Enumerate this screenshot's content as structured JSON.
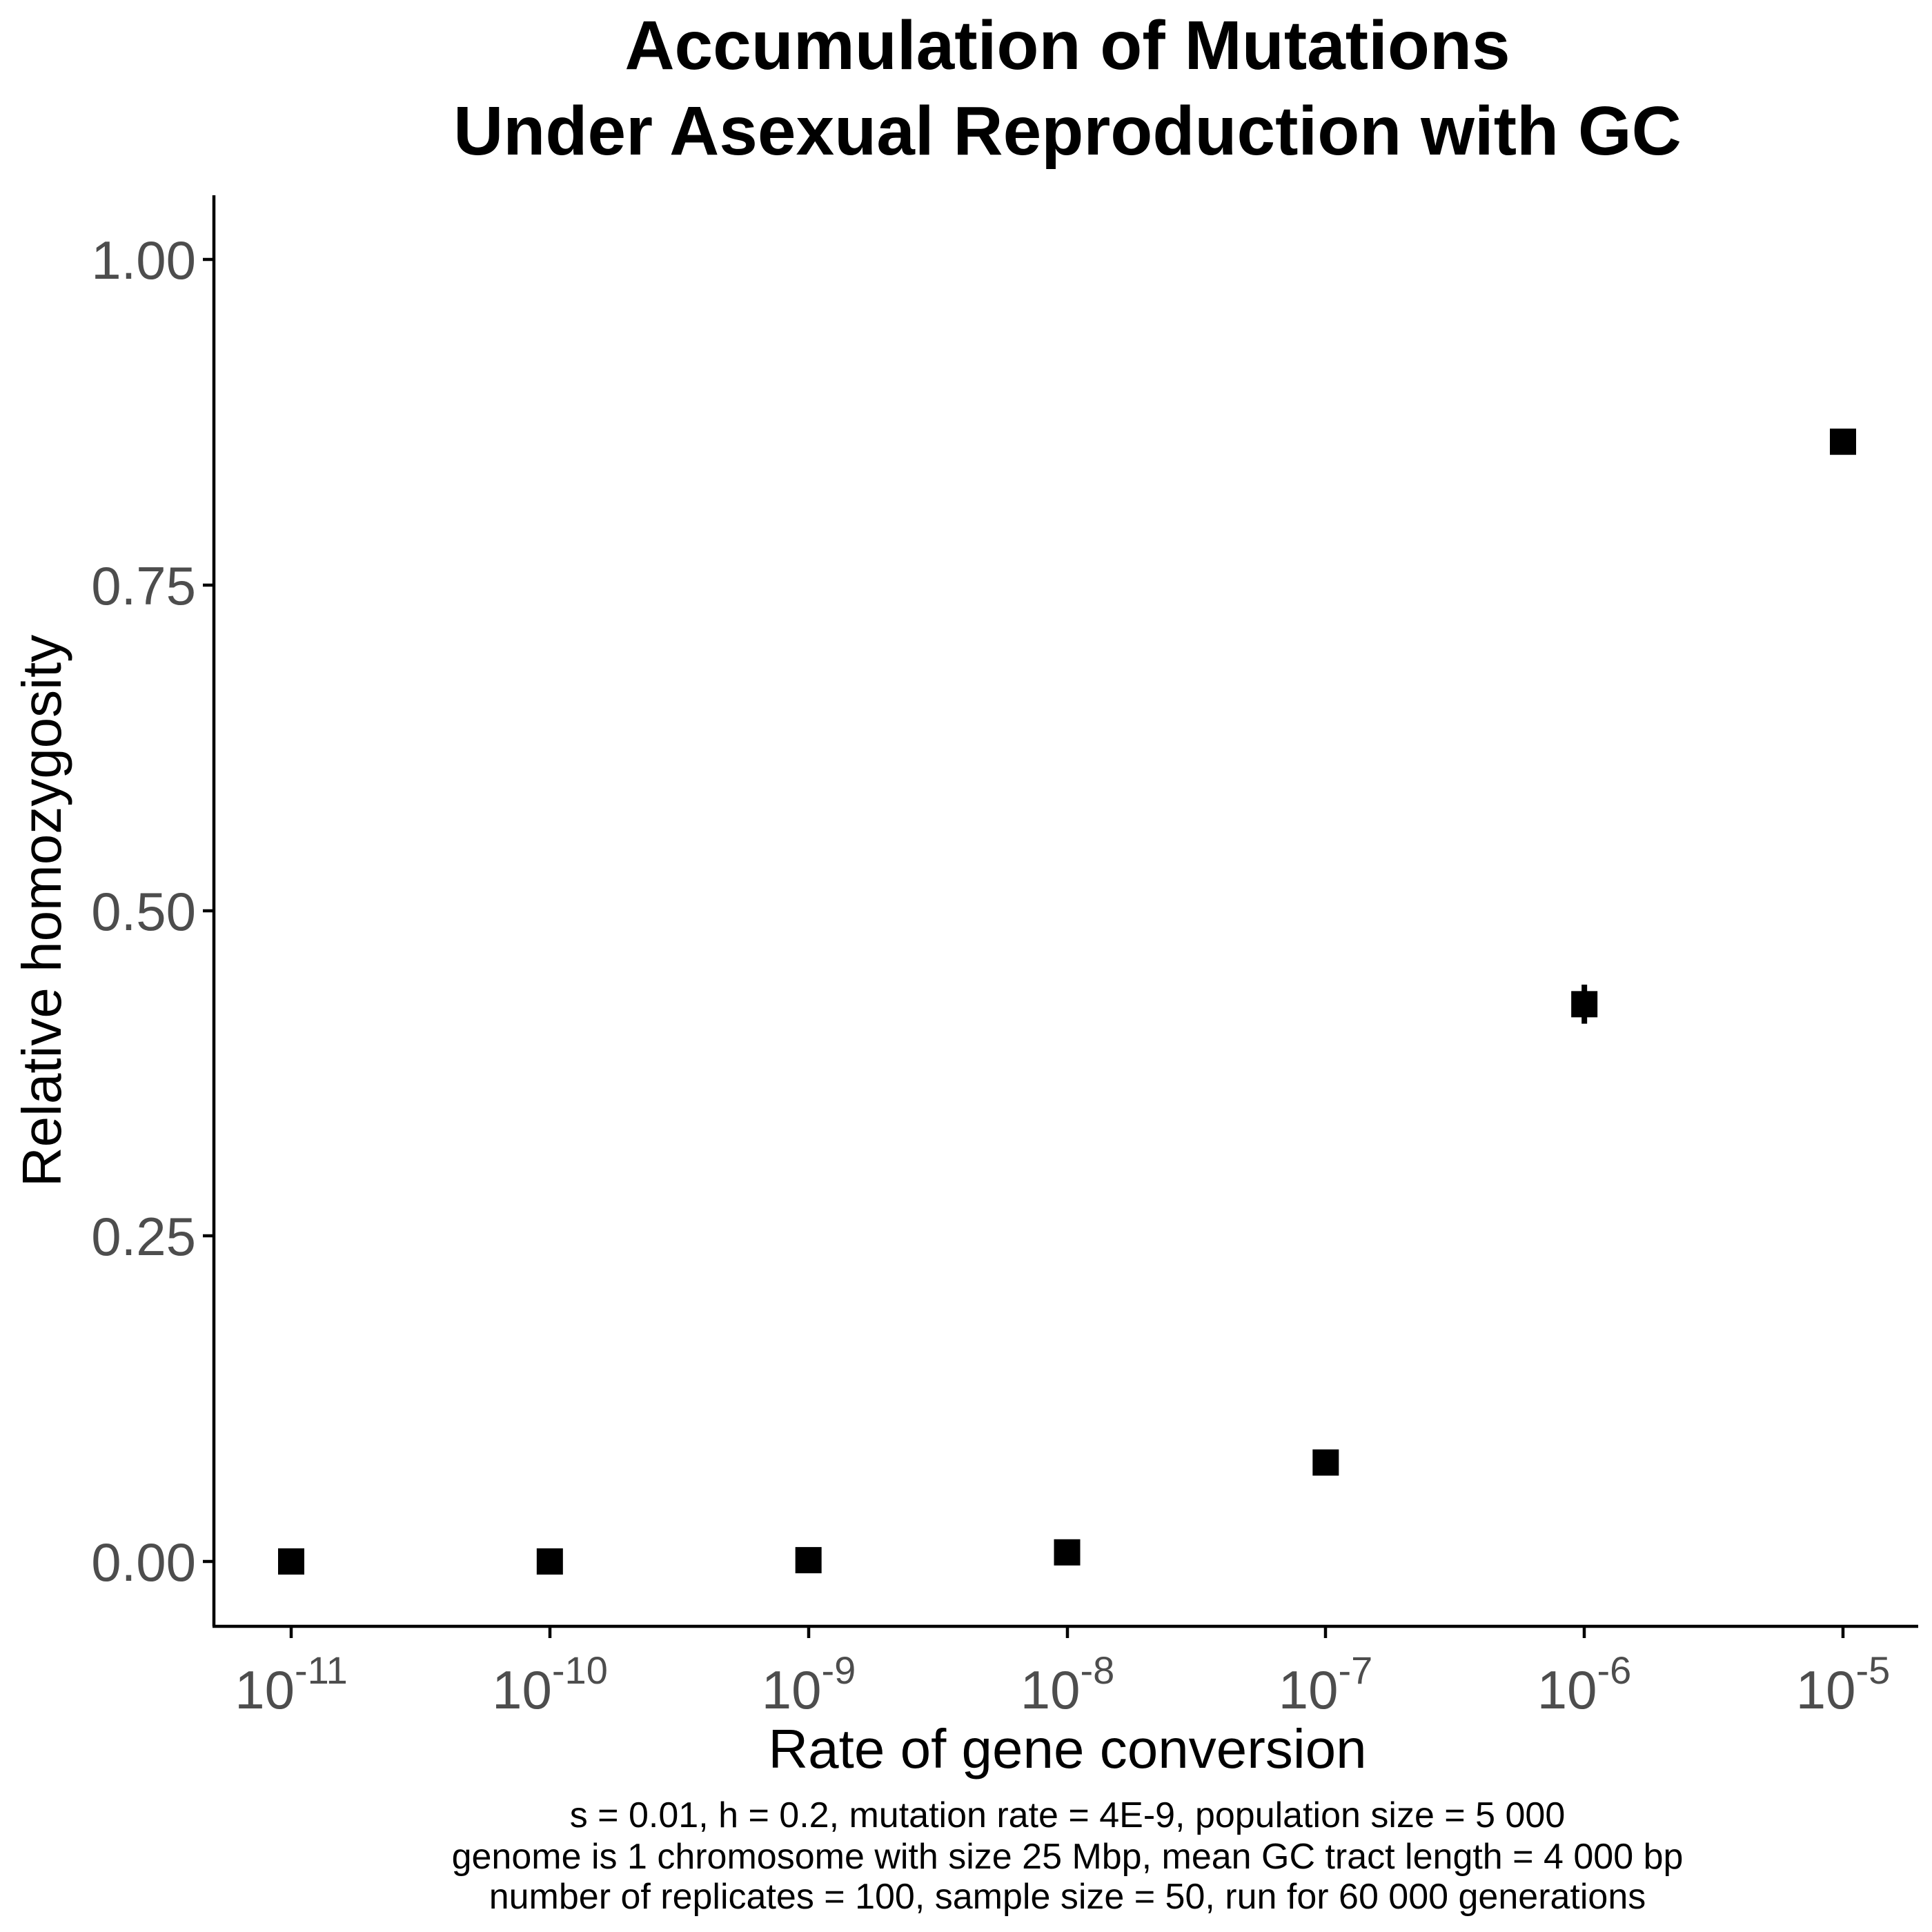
{
  "chart_data": {
    "type": "scatter",
    "title": [
      "Accumulation of Mutations",
      "Under Asexual Reproduction with GC"
    ],
    "xlabel": "Rate of gene conversion",
    "ylabel": "Relative homozygosity",
    "x_scale": "log10",
    "x_ticks": [
      {
        "base": "10",
        "exp": "-11",
        "value": 1e-11
      },
      {
        "base": "10",
        "exp": "-10",
        "value": 1e-10
      },
      {
        "base": "10",
        "exp": "-9",
        "value": 1e-09
      },
      {
        "base": "10",
        "exp": "-8",
        "value": 1e-08
      },
      {
        "base": "10",
        "exp": "-7",
        "value": 1e-07
      },
      {
        "base": "10",
        "exp": "-6",
        "value": 1e-06
      },
      {
        "base": "10",
        "exp": "-5",
        "value": 1e-05
      }
    ],
    "y_ticks": [
      "0.00",
      "0.25",
      "0.50",
      "0.75",
      "1.00"
    ],
    "y_tick_values": [
      0,
      0.25,
      0.5,
      0.75,
      1.0
    ],
    "ylim": [
      -0.05,
      1.05
    ],
    "grid": false,
    "marker": "square",
    "marker_color": "#000000",
    "points": [
      {
        "x": 1e-11,
        "y": 0.0
      },
      {
        "x": 1e-10,
        "y": 0.0
      },
      {
        "x": 1e-09,
        "y": 0.001
      },
      {
        "x": 1e-08,
        "y": 0.007
      },
      {
        "x": 1e-07,
        "y": 0.076
      },
      {
        "x": 1e-06,
        "y": 0.428,
        "error": [
          0.413,
          0.443
        ]
      },
      {
        "x": 1e-05,
        "y": 0.86
      }
    ],
    "caption": [
      "s = 0.01, h = 0.2, mutation rate = 4E-9, population size = 5 000",
      "genome is 1 chromosome with size 25 Mbp, mean GC tract length = 4 000 bp",
      "number of replicates = 100, sample size = 50, run for 60 000 generations"
    ]
  }
}
